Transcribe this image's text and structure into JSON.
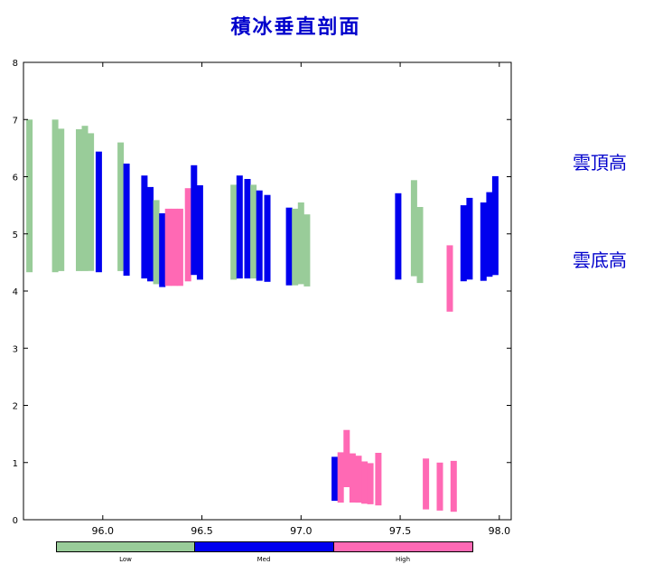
{
  "title": "積冰垂直剖面",
  "side_labels": {
    "top": "雲頂高",
    "base": "雲底高"
  },
  "legend": [
    {
      "label": "Low",
      "color": "#99cc99"
    },
    {
      "label": "Med",
      "color": "#0000ee"
    },
    {
      "label": "High",
      "color": "#ff69b4"
    }
  ],
  "chart_data": {
    "type": "bar",
    "title": "積冰垂直剖面",
    "xlabel": "",
    "ylabel": "",
    "xlim": [
      95.6,
      98.06
    ],
    "ylim": [
      0,
      8
    ],
    "xticks": [
      "96.0",
      "96.5",
      "97.0",
      "97.5",
      "98.0"
    ],
    "yticks": [
      "0",
      "1",
      "2",
      "3",
      "4",
      "5",
      "6",
      "7",
      "8"
    ],
    "grid": false,
    "colors": {
      "Low": "#99cc99",
      "Med": "#0000ee",
      "High": "#ff69b4"
    },
    "bars": [
      {
        "x": 95.63,
        "base": 4.33,
        "top": 7.0,
        "level": "Low"
      },
      {
        "x": 95.76,
        "base": 4.33,
        "top": 7.0,
        "level": "Low"
      },
      {
        "x": 95.79,
        "base": 4.35,
        "top": 6.84,
        "level": "Low"
      },
      {
        "x": 95.88,
        "base": 4.35,
        "top": 6.83,
        "level": "Low"
      },
      {
        "x": 95.91,
        "base": 4.35,
        "top": 6.89,
        "level": "Low"
      },
      {
        "x": 95.94,
        "base": 4.35,
        "top": 6.76,
        "level": "Low"
      },
      {
        "x": 95.98,
        "base": 4.33,
        "top": 6.44,
        "level": "Med"
      },
      {
        "x": 96.09,
        "base": 4.35,
        "top": 6.6,
        "level": "Low"
      },
      {
        "x": 96.12,
        "base": 4.27,
        "top": 6.23,
        "level": "Med"
      },
      {
        "x": 96.21,
        "base": 4.22,
        "top": 6.02,
        "level": "Med"
      },
      {
        "x": 96.24,
        "base": 4.17,
        "top": 5.82,
        "level": "Med"
      },
      {
        "x": 96.27,
        "base": 4.12,
        "top": 5.59,
        "level": "Low"
      },
      {
        "x": 96.3,
        "base": 4.07,
        "top": 5.36,
        "level": "Med"
      },
      {
        "x": 96.33,
        "base": 4.09,
        "top": 5.44,
        "level": "High"
      },
      {
        "x": 96.36,
        "base": 4.09,
        "top": 5.44,
        "level": "High"
      },
      {
        "x": 96.39,
        "base": 4.09,
        "top": 5.44,
        "level": "High"
      },
      {
        "x": 96.43,
        "base": 4.17,
        "top": 5.8,
        "level": "High"
      },
      {
        "x": 96.46,
        "base": 4.28,
        "top": 6.2,
        "level": "Med"
      },
      {
        "x": 96.49,
        "base": 4.2,
        "top": 5.85,
        "level": "Med"
      },
      {
        "x": 96.66,
        "base": 4.2,
        "top": 5.86,
        "level": "Low"
      },
      {
        "x": 96.69,
        "base": 4.22,
        "top": 6.02,
        "level": "Med"
      },
      {
        "x": 96.73,
        "base": 4.22,
        "top": 5.96,
        "level": "Med"
      },
      {
        "x": 96.76,
        "base": 4.22,
        "top": 5.86,
        "level": "Low"
      },
      {
        "x": 96.79,
        "base": 4.18,
        "top": 5.76,
        "level": "Med"
      },
      {
        "x": 96.83,
        "base": 4.16,
        "top": 5.68,
        "level": "Med"
      },
      {
        "x": 96.94,
        "base": 4.1,
        "top": 5.46,
        "level": "Med"
      },
      {
        "x": 96.97,
        "base": 4.1,
        "top": 5.44,
        "level": "Low"
      },
      {
        "x": 97.0,
        "base": 4.12,
        "top": 5.55,
        "level": "Low"
      },
      {
        "x": 97.03,
        "base": 4.08,
        "top": 5.34,
        "level": "Low"
      },
      {
        "x": 97.49,
        "base": 4.2,
        "top": 5.71,
        "level": "Med"
      },
      {
        "x": 97.57,
        "base": 4.26,
        "top": 5.94,
        "level": "Low"
      },
      {
        "x": 97.6,
        "base": 4.14,
        "top": 5.47,
        "level": "Low"
      },
      {
        "x": 97.75,
        "base": 3.64,
        "top": 4.8,
        "level": "High"
      },
      {
        "x": 97.82,
        "base": 4.17,
        "top": 5.5,
        "level": "Med"
      },
      {
        "x": 97.85,
        "base": 4.2,
        "top": 5.63,
        "level": "Med"
      },
      {
        "x": 97.92,
        "base": 4.18,
        "top": 5.55,
        "level": "Med"
      },
      {
        "x": 97.95,
        "base": 4.25,
        "top": 5.73,
        "level": "Med"
      },
      {
        "x": 97.98,
        "base": 4.28,
        "top": 6.01,
        "level": "Med"
      },
      {
        "x": 97.17,
        "base": 0.33,
        "top": 1.1,
        "level": "Med"
      },
      {
        "x": 97.2,
        "base": 0.3,
        "top": 1.18,
        "level": "High"
      },
      {
        "x": 97.23,
        "base": 0.57,
        "top": 1.57,
        "level": "High"
      },
      {
        "x": 97.26,
        "base": 0.3,
        "top": 1.16,
        "level": "High"
      },
      {
        "x": 97.29,
        "base": 0.3,
        "top": 1.12,
        "level": "High"
      },
      {
        "x": 97.32,
        "base": 0.28,
        "top": 1.02,
        "level": "High"
      },
      {
        "x": 97.35,
        "base": 0.27,
        "top": 0.99,
        "level": "High"
      },
      {
        "x": 97.39,
        "base": 0.25,
        "top": 1.17,
        "level": "High"
      },
      {
        "x": 97.63,
        "base": 0.18,
        "top": 1.07,
        "level": "High"
      },
      {
        "x": 97.7,
        "base": 0.16,
        "top": 1.0,
        "level": "High"
      },
      {
        "x": 97.77,
        "base": 0.14,
        "top": 1.03,
        "level": "High"
      }
    ]
  }
}
